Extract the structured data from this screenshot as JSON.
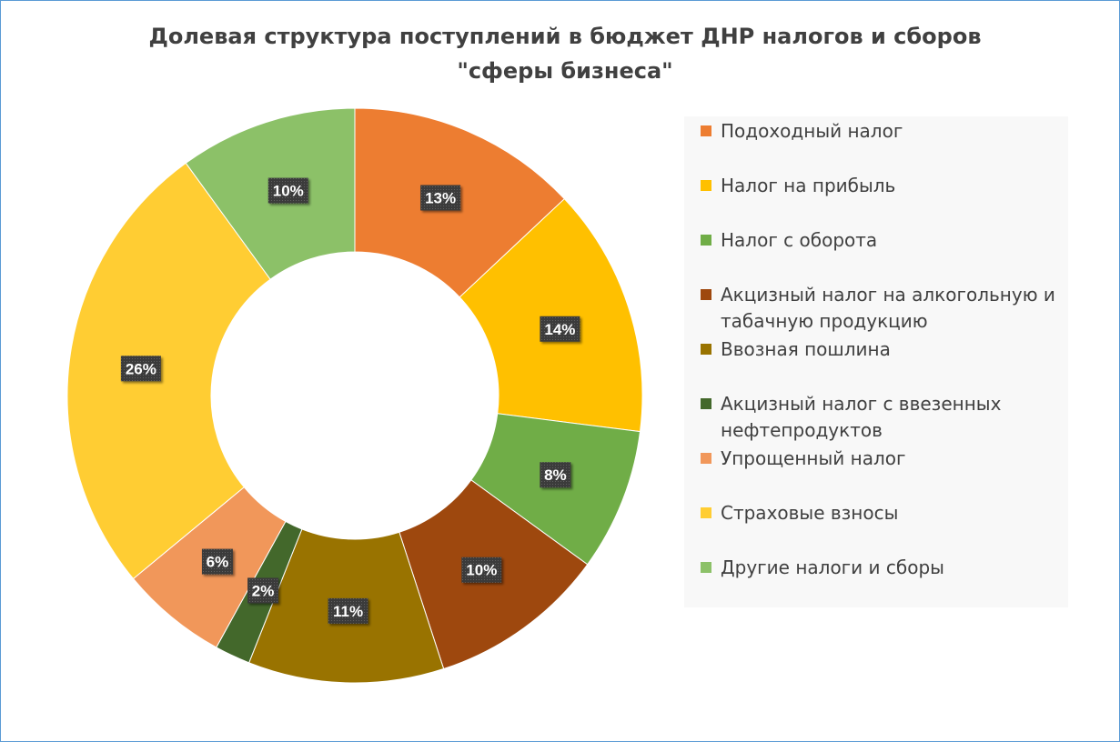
{
  "chart_data": {
    "type": "pie",
    "subtype": "doughnut",
    "title": "Долевая структура поступлений в бюджет ДНР налогов и сборов \"сферы бизнеса\"",
    "legend_position": "right",
    "unit": "%",
    "slices": [
      {
        "label": "Подоходный налог",
        "value": 13,
        "display": "13%",
        "color": "#ed7d31"
      },
      {
        "label": "Налог на прибыль",
        "value": 14,
        "display": "14%",
        "color": "#ffc000"
      },
      {
        "label": "Налог с оборота",
        "value": 8,
        "display": "8%",
        "color": "#70ad47"
      },
      {
        "label": "Акцизный налог на алкогольную и табачную продукцию",
        "value": 10,
        "display": "10%",
        "color": "#9e480e"
      },
      {
        "label": "Ввозная пошлина",
        "value": 11,
        "display": "11%",
        "color": "#997300"
      },
      {
        "label": "Акцизный налог с ввезенных нефтепродуктов",
        "value": 2,
        "display": "2%",
        "color": "#43682b"
      },
      {
        "label": "Упрощенный налог",
        "value": 6,
        "display": "6%",
        "color": "#f1975a"
      },
      {
        "label": "Страховые взносы",
        "value": 26,
        "display": "26%",
        "color": "#ffcd33"
      },
      {
        "label": "Другие налоги и сборы",
        "value": 10,
        "display": "10%",
        "color": "#8cc168"
      }
    ]
  }
}
